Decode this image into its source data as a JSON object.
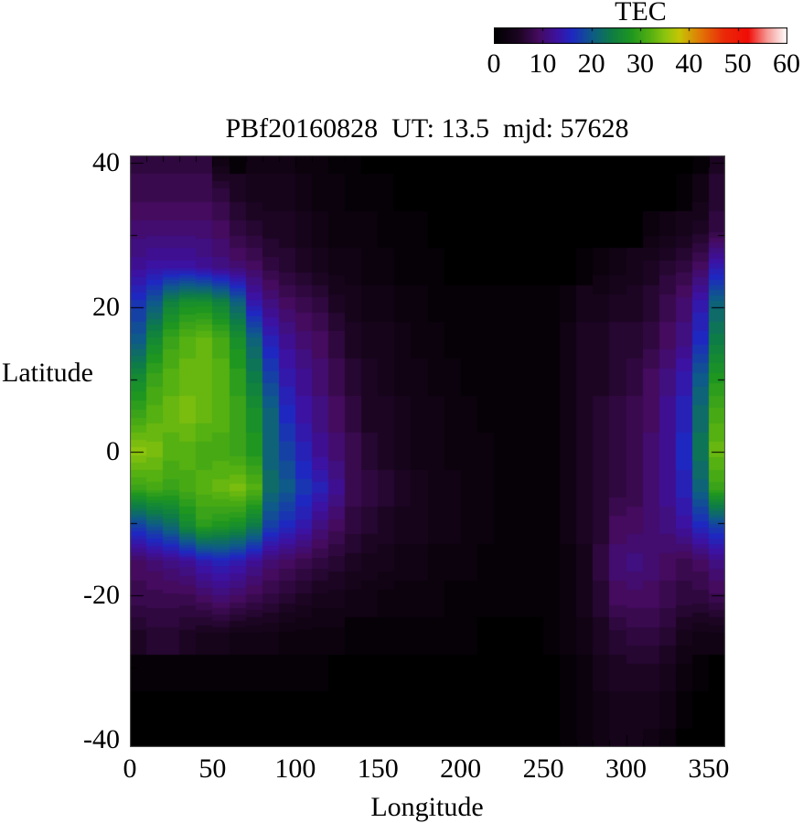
{
  "colorbar": {
    "title": "TEC",
    "ticks": [
      0,
      10,
      20,
      30,
      40,
      50,
      60
    ]
  },
  "plot": {
    "title": "PBf20160828  UT: 13.5  mjd: 57628",
    "xlabel": "Longitude",
    "ylabel": "Latitude",
    "x_ticks": [
      0,
      50,
      100,
      150,
      200,
      250,
      300,
      350
    ],
    "y_ticks": [
      40,
      20,
      0,
      -20,
      -40
    ]
  },
  "chart_data": {
    "type": "heatmap",
    "title": "PBf20160828  UT: 13.5  mjd: 57628",
    "xlabel": "Longitude",
    "ylabel": "Latitude",
    "colorbar_label": "TEC",
    "xlim": [
      0,
      360
    ],
    "ylim": [
      -41,
      41
    ],
    "zlim": [
      0,
      60
    ],
    "lon_start": 0,
    "lon_step": 10,
    "lat_start": 40,
    "lat_step": -5,
    "value_units": "TECU",
    "palette_stops": [
      [
        0,
        "#000000"
      ],
      [
        5,
        "#1c0522"
      ],
      [
        9,
        "#440b5e"
      ],
      [
        13,
        "#3c12a2"
      ],
      [
        16,
        "#1e28c0"
      ],
      [
        20,
        "#0e5a88"
      ],
      [
        24,
        "#0e7c46"
      ],
      [
        28,
        "#1e9620"
      ],
      [
        32,
        "#55b011"
      ],
      [
        35,
        "#8cc40e"
      ],
      [
        38,
        "#c6c405"
      ],
      [
        42,
        "#e07c06"
      ],
      [
        47,
        "#ea2a08"
      ],
      [
        52,
        "#f00c06"
      ],
      [
        56,
        "#f59a96"
      ],
      [
        60,
        "#ffffff"
      ]
    ],
    "grid": [
      [
        7,
        7,
        7,
        7,
        7,
        2,
        1,
        3,
        3,
        3,
        2,
        2,
        1,
        1,
        0,
        0,
        0,
        0,
        0,
        0,
        0,
        0,
        0,
        0,
        0,
        0,
        0,
        0,
        0,
        0,
        0,
        0,
        0,
        0,
        1,
        5
      ],
      [
        8,
        8,
        8,
        8,
        8,
        7,
        5,
        4,
        4,
        4,
        3,
        2,
        2,
        1,
        1,
        1,
        0,
        0,
        0,
        0,
        0,
        0,
        0,
        0,
        0,
        0,
        0,
        0,
        0,
        0,
        0,
        0,
        0,
        1,
        3,
        6
      ],
      [
        10,
        10,
        10,
        10,
        10,
        9,
        7,
        6,
        5,
        5,
        4,
        3,
        2,
        2,
        2,
        1,
        1,
        1,
        0,
        0,
        0,
        0,
        0,
        0,
        0,
        0,
        0,
        0,
        0,
        0,
        0,
        2,
        3,
        4,
        5,
        7
      ],
      [
        12,
        13,
        13,
        13,
        12,
        11,
        10,
        9,
        7,
        6,
        5,
        4,
        3,
        3,
        2,
        2,
        1,
        1,
        1,
        0,
        0,
        0,
        0,
        0,
        0,
        0,
        0,
        1,
        2,
        3,
        4,
        5,
        6,
        7,
        9,
        14
      ],
      [
        17,
        20,
        25,
        27,
        27,
        25,
        21,
        14,
        11,
        9,
        8,
        7,
        5,
        4,
        3,
        3,
        2,
        2,
        1,
        1,
        1,
        1,
        1,
        1,
        1,
        1,
        2,
        4,
        4,
        5,
        5,
        6,
        8,
        10,
        14,
        21
      ],
      [
        20,
        26,
        30,
        32,
        33,
        31,
        27,
        21,
        15,
        12,
        10,
        9,
        7,
        5,
        4,
        4,
        3,
        2,
        2,
        1,
        1,
        1,
        1,
        1,
        1,
        1,
        3,
        5,
        5,
        6,
        6,
        7,
        9,
        11,
        16,
        24
      ],
      [
        26,
        30,
        32,
        33,
        33,
        32,
        29,
        24,
        18,
        14,
        12,
        10,
        8,
        6,
        5,
        4,
        3,
        3,
        2,
        2,
        1,
        1,
        1,
        1,
        1,
        1,
        3,
        5,
        5,
        6,
        7,
        9,
        11,
        14,
        20,
        28
      ],
      [
        30,
        32,
        33,
        34,
        33,
        32,
        30,
        27,
        21,
        16,
        13,
        11,
        9,
        7,
        5,
        5,
        4,
        3,
        3,
        2,
        2,
        1,
        1,
        1,
        1,
        1,
        3,
        5,
        6,
        7,
        8,
        9,
        12,
        15,
        22,
        31
      ],
      [
        35,
        34,
        32,
        32,
        31,
        31,
        30,
        28,
        21,
        18,
        15,
        12,
        10,
        8,
        6,
        5,
        4,
        3,
        3,
        2,
        2,
        2,
        1,
        1,
        1,
        1,
        3,
        5,
        6,
        7,
        8,
        10,
        12,
        16,
        23,
        33
      ],
      [
        30,
        31,
        30,
        31,
        32,
        33,
        34,
        32,
        22,
        20,
        17,
        15,
        12,
        8,
        7,
        6,
        5,
        4,
        3,
        3,
        2,
        2,
        1,
        1,
        1,
        1,
        3,
        5,
        6,
        7,
        8,
        10,
        12,
        15,
        21,
        30
      ],
      [
        18,
        20,
        22,
        26,
        29,
        28,
        27,
        24,
        18,
        16,
        14,
        11,
        9,
        7,
        6,
        5,
        4,
        4,
        3,
        3,
        2,
        2,
        1,
        1,
        1,
        1,
        3,
        5,
        6,
        9,
        9,
        10,
        11,
        13,
        16,
        18
      ],
      [
        9,
        10,
        11,
        12,
        14,
        15,
        14,
        12,
        10,
        9,
        8,
        7,
        6,
        5,
        4,
        4,
        3,
        3,
        2,
        2,
        2,
        1,
        1,
        1,
        1,
        1,
        2,
        4,
        7,
        10,
        11,
        10,
        9,
        8,
        9,
        11
      ],
      [
        8,
        8,
        8,
        8,
        9,
        10,
        9,
        8,
        7,
        6,
        5,
        4,
        4,
        3,
        3,
        2,
        2,
        2,
        2,
        1,
        1,
        1,
        1,
        1,
        1,
        1,
        2,
        4,
        6,
        9,
        9,
        9,
        8,
        7,
        7,
        8
      ],
      [
        5,
        6,
        6,
        5,
        4,
        4,
        3,
        3,
        3,
        2,
        2,
        2,
        2,
        1,
        1,
        1,
        1,
        1,
        1,
        1,
        1,
        0,
        0,
        0,
        0,
        1,
        2,
        3,
        5,
        6,
        7,
        7,
        6,
        4,
        3,
        3
      ],
      [
        1,
        1,
        1,
        1,
        1,
        1,
        1,
        1,
        1,
        1,
        1,
        1,
        0,
        0,
        0,
        0,
        0,
        0,
        0,
        0,
        0,
        0,
        0,
        0,
        0,
        0,
        1,
        2,
        4,
        5,
        5,
        5,
        4,
        2,
        1,
        0
      ],
      [
        0,
        0,
        0,
        0,
        0,
        0,
        0,
        0,
        0,
        0,
        0,
        0,
        0,
        0,
        0,
        0,
        0,
        0,
        0,
        0,
        0,
        0,
        0,
        0,
        0,
        0,
        1,
        2,
        3,
        4,
        4,
        4,
        3,
        1,
        0,
        0
      ],
      [
        0,
        0,
        0,
        0,
        0,
        0,
        0,
        0,
        0,
        0,
        0,
        0,
        0,
        0,
        0,
        0,
        0,
        0,
        0,
        0,
        0,
        0,
        0,
        0,
        0,
        0,
        1,
        2,
        3,
        4,
        4,
        3,
        2,
        0,
        0,
        0
      ]
    ]
  }
}
